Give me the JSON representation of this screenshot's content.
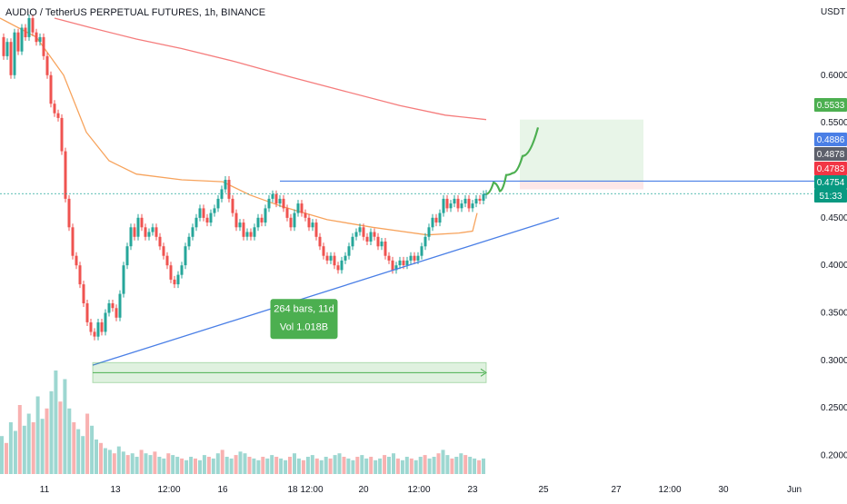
{
  "header": {
    "title": "AUDIO / TetherUS PERPETUAL FUTURES, 1h, BINANCE",
    "unit": "USDT"
  },
  "chart_data": {
    "type": "candlestick",
    "symbol": "AUDIO / TetherUS PERPETUAL FUTURES",
    "interval": "1h",
    "exchange": "BINANCE",
    "y_unit": "USDT",
    "ylim": [
      0.19,
      0.66
    ],
    "y_ticks": [
      "0.6000",
      "0.5500",
      "0.5000",
      "0.4500",
      "0.4000",
      "0.3500",
      "0.3000",
      "0.2500",
      "0.2000"
    ],
    "x_ticks": [
      "11",
      "13",
      "12:00",
      "16",
      "18",
      "12:00",
      "20",
      "12:00",
      "23",
      "25",
      "27",
      "12:00",
      "30",
      "Jun"
    ],
    "price_tags": [
      {
        "label": "0.5533",
        "color": "#4caf50"
      },
      {
        "label": "0.4886",
        "color": "#4a7fe6"
      },
      {
        "label": "0.4878",
        "color": "#5d606b"
      },
      {
        "label": "0.4783",
        "color": "#f23645"
      },
      {
        "label": "0.4754",
        "color": "#089981"
      },
      {
        "label": "51:33",
        "color": "#089981"
      }
    ],
    "price_path": [
      {
        "x": 0,
        "y": 0.64
      },
      {
        "x": 4,
        "y": 0.62
      },
      {
        "x": 8,
        "y": 0.635
      },
      {
        "x": 12,
        "y": 0.6
      },
      {
        "x": 16,
        "y": 0.645
      },
      {
        "x": 20,
        "y": 0.625
      },
      {
        "x": 24,
        "y": 0.65
      },
      {
        "x": 28,
        "y": 0.64
      },
      {
        "x": 32,
        "y": 0.66
      },
      {
        "x": 36,
        "y": 0.645
      },
      {
        "x": 40,
        "y": 0.635
      },
      {
        "x": 44,
        "y": 0.64
      },
      {
        "x": 48,
        "y": 0.62
      },
      {
        "x": 52,
        "y": 0.6
      },
      {
        "x": 56,
        "y": 0.57
      },
      {
        "x": 60,
        "y": 0.56
      },
      {
        "x": 64,
        "y": 0.555
      },
      {
        "x": 68,
        "y": 0.52
      },
      {
        "x": 72,
        "y": 0.47
      },
      {
        "x": 76,
        "y": 0.44
      },
      {
        "x": 80,
        "y": 0.41
      },
      {
        "x": 84,
        "y": 0.4
      },
      {
        "x": 88,
        "y": 0.38
      },
      {
        "x": 92,
        "y": 0.36
      },
      {
        "x": 96,
        "y": 0.34
      },
      {
        "x": 100,
        "y": 0.33
      },
      {
        "x": 104,
        "y": 0.325
      },
      {
        "x": 108,
        "y": 0.34
      },
      {
        "x": 112,
        "y": 0.33
      },
      {
        "x": 116,
        "y": 0.35
      },
      {
        "x": 120,
        "y": 0.36
      },
      {
        "x": 124,
        "y": 0.355
      },
      {
        "x": 128,
        "y": 0.345
      },
      {
        "x": 132,
        "y": 0.37
      },
      {
        "x": 136,
        "y": 0.4
      },
      {
        "x": 140,
        "y": 0.42
      },
      {
        "x": 144,
        "y": 0.44
      },
      {
        "x": 148,
        "y": 0.43
      },
      {
        "x": 152,
        "y": 0.45
      },
      {
        "x": 156,
        "y": 0.44
      },
      {
        "x": 160,
        "y": 0.43
      },
      {
        "x": 164,
        "y": 0.435
      },
      {
        "x": 168,
        "y": 0.44
      },
      {
        "x": 172,
        "y": 0.43
      },
      {
        "x": 176,
        "y": 0.42
      },
      {
        "x": 180,
        "y": 0.41
      },
      {
        "x": 184,
        "y": 0.4
      },
      {
        "x": 188,
        "y": 0.385
      },
      {
        "x": 192,
        "y": 0.38
      },
      {
        "x": 196,
        "y": 0.39
      },
      {
        "x": 200,
        "y": 0.4
      },
      {
        "x": 204,
        "y": 0.42
      },
      {
        "x": 208,
        "y": 0.43
      },
      {
        "x": 212,
        "y": 0.44
      },
      {
        "x": 216,
        "y": 0.45
      },
      {
        "x": 220,
        "y": 0.46
      },
      {
        "x": 224,
        "y": 0.45
      },
      {
        "x": 228,
        "y": 0.445
      },
      {
        "x": 232,
        "y": 0.455
      },
      {
        "x": 236,
        "y": 0.46
      },
      {
        "x": 240,
        "y": 0.47
      },
      {
        "x": 244,
        "y": 0.48
      },
      {
        "x": 248,
        "y": 0.49
      },
      {
        "x": 252,
        "y": 0.47
      },
      {
        "x": 256,
        "y": 0.455
      },
      {
        "x": 260,
        "y": 0.44
      },
      {
        "x": 264,
        "y": 0.445
      },
      {
        "x": 268,
        "y": 0.43
      },
      {
        "x": 272,
        "y": 0.435
      },
      {
        "x": 276,
        "y": 0.43
      },
      {
        "x": 280,
        "y": 0.44
      },
      {
        "x": 284,
        "y": 0.45
      },
      {
        "x": 288,
        "y": 0.445
      },
      {
        "x": 292,
        "y": 0.46
      },
      {
        "x": 296,
        "y": 0.47
      },
      {
        "x": 300,
        "y": 0.475
      },
      {
        "x": 304,
        "y": 0.465
      },
      {
        "x": 308,
        "y": 0.47
      },
      {
        "x": 312,
        "y": 0.46
      },
      {
        "x": 316,
        "y": 0.45
      },
      {
        "x": 320,
        "y": 0.44
      },
      {
        "x": 324,
        "y": 0.455
      },
      {
        "x": 328,
        "y": 0.465
      },
      {
        "x": 332,
        "y": 0.455
      },
      {
        "x": 336,
        "y": 0.45
      },
      {
        "x": 340,
        "y": 0.44
      },
      {
        "x": 344,
        "y": 0.445
      },
      {
        "x": 348,
        "y": 0.43
      },
      {
        "x": 352,
        "y": 0.42
      },
      {
        "x": 356,
        "y": 0.41
      },
      {
        "x": 360,
        "y": 0.405
      },
      {
        "x": 364,
        "y": 0.41
      },
      {
        "x": 368,
        "y": 0.4
      },
      {
        "x": 372,
        "y": 0.395
      },
      {
        "x": 376,
        "y": 0.405
      },
      {
        "x": 380,
        "y": 0.41
      },
      {
        "x": 384,
        "y": 0.42
      },
      {
        "x": 388,
        "y": 0.43
      },
      {
        "x": 392,
        "y": 0.435
      },
      {
        "x": 396,
        "y": 0.44
      },
      {
        "x": 400,
        "y": 0.43
      },
      {
        "x": 404,
        "y": 0.425
      },
      {
        "x": 408,
        "y": 0.435
      },
      {
        "x": 412,
        "y": 0.43
      },
      {
        "x": 416,
        "y": 0.42
      },
      {
        "x": 420,
        "y": 0.425
      },
      {
        "x": 424,
        "y": 0.41
      },
      {
        "x": 428,
        "y": 0.405
      },
      {
        "x": 432,
        "y": 0.395
      },
      {
        "x": 436,
        "y": 0.4
      },
      {
        "x": 440,
        "y": 0.405
      },
      {
        "x": 444,
        "y": 0.4
      },
      {
        "x": 448,
        "y": 0.405
      },
      {
        "x": 452,
        "y": 0.41
      },
      {
        "x": 456,
        "y": 0.405
      },
      {
        "x": 460,
        "y": 0.41
      },
      {
        "x": 464,
        "y": 0.42
      },
      {
        "x": 468,
        "y": 0.43
      },
      {
        "x": 472,
        "y": 0.44
      },
      {
        "x": 476,
        "y": 0.45
      },
      {
        "x": 480,
        "y": 0.445
      },
      {
        "x": 484,
        "y": 0.455
      },
      {
        "x": 488,
        "y": 0.47
      },
      {
        "x": 492,
        "y": 0.46
      },
      {
        "x": 496,
        "y": 0.465
      },
      {
        "x": 500,
        "y": 0.47
      },
      {
        "x": 504,
        "y": 0.46
      },
      {
        "x": 508,
        "y": 0.465
      },
      {
        "x": 512,
        "y": 0.47
      },
      {
        "x": 516,
        "y": 0.46
      },
      {
        "x": 520,
        "y": 0.465
      },
      {
        "x": 524,
        "y": 0.47
      },
      {
        "x": 528,
        "y": 0.468
      },
      {
        "x": 532,
        "y": 0.475
      },
      {
        "x": 535,
        "y": 0.4754
      }
    ],
    "moving_averages": [
      {
        "color": "#f7a35c",
        "points": [
          {
            "x": 0,
            "y": 0.66
          },
          {
            "x": 40,
            "y": 0.64
          },
          {
            "x": 70,
            "y": 0.6
          },
          {
            "x": 95,
            "y": 0.54
          },
          {
            "x": 120,
            "y": 0.51
          },
          {
            "x": 150,
            "y": 0.496
          },
          {
            "x": 200,
            "y": 0.49
          },
          {
            "x": 245,
            "y": 0.488
          },
          {
            "x": 275,
            "y": 0.474
          },
          {
            "x": 310,
            "y": 0.462
          },
          {
            "x": 360,
            "y": 0.448
          },
          {
            "x": 410,
            "y": 0.44
          },
          {
            "x": 470,
            "y": 0.432
          },
          {
            "x": 505,
            "y": 0.434
          },
          {
            "x": 520,
            "y": 0.436
          },
          {
            "x": 525,
            "y": 0.455
          }
        ]
      },
      {
        "color": "#f57c7c",
        "points": [
          {
            "x": 60,
            "y": 0.66
          },
          {
            "x": 100,
            "y": 0.65
          },
          {
            "x": 150,
            "y": 0.638
          },
          {
            "x": 200,
            "y": 0.628
          },
          {
            "x": 260,
            "y": 0.614
          },
          {
            "x": 320,
            "y": 0.598
          },
          {
            "x": 380,
            "y": 0.583
          },
          {
            "x": 440,
            "y": 0.568
          },
          {
            "x": 490,
            "y": 0.558
          },
          {
            "x": 535,
            "y": 0.5533
          }
        ]
      }
    ],
    "trendline": {
      "from": {
        "x": 102,
        "y": 0.295
      },
      "to": {
        "x": 615,
        "y": 0.45
      }
    },
    "resistance_line": {
      "x1": 308,
      "x2": 932,
      "y": 0.4886
    },
    "date_range_annotation": {
      "x1": 102,
      "x2": 535,
      "y": 0.29,
      "text_line1": "264 bars, 11d",
      "text_line2": "Vol 1.018B"
    },
    "target_zone": {
      "x1": 572,
      "x2": 708,
      "y_top": 0.5533,
      "y_entry": 0.4886,
      "y_stop": 0.48
    },
    "projection_path": [
      {
        "x": 535,
        "y": 0.475
      },
      {
        "x": 543,
        "y": 0.487
      },
      {
        "x": 550,
        "y": 0.478
      },
      {
        "x": 557,
        "y": 0.495
      },
      {
        "x": 564,
        "y": 0.497
      },
      {
        "x": 575,
        "y": 0.515
      },
      {
        "x": 592,
        "y": 0.545
      }
    ],
    "volume": [
      22,
      18,
      30,
      25,
      40,
      28,
      35,
      30,
      45,
      32,
      38,
      48,
      60,
      42,
      55,
      38,
      30,
      26,
      22,
      35,
      28,
      20,
      18,
      15,
      14,
      12,
      16,
      13,
      11,
      12,
      10,
      14,
      12,
      11,
      13,
      10,
      9,
      12,
      11,
      10,
      9,
      8,
      10,
      9,
      8,
      11,
      10,
      9,
      12,
      14,
      10,
      9,
      11,
      13,
      12,
      10,
      9,
      8,
      10,
      9,
      11,
      10,
      9,
      8,
      10,
      12,
      9,
      8,
      10,
      11,
      9,
      8,
      10,
      9,
      11,
      12,
      10,
      9,
      8,
      10,
      11,
      9,
      10,
      8,
      9,
      11,
      10,
      12,
      9,
      8,
      10,
      9,
      8,
      10,
      11,
      9,
      10,
      12,
      14,
      11,
      9,
      10,
      12,
      11,
      10,
      9,
      8,
      9
    ]
  }
}
